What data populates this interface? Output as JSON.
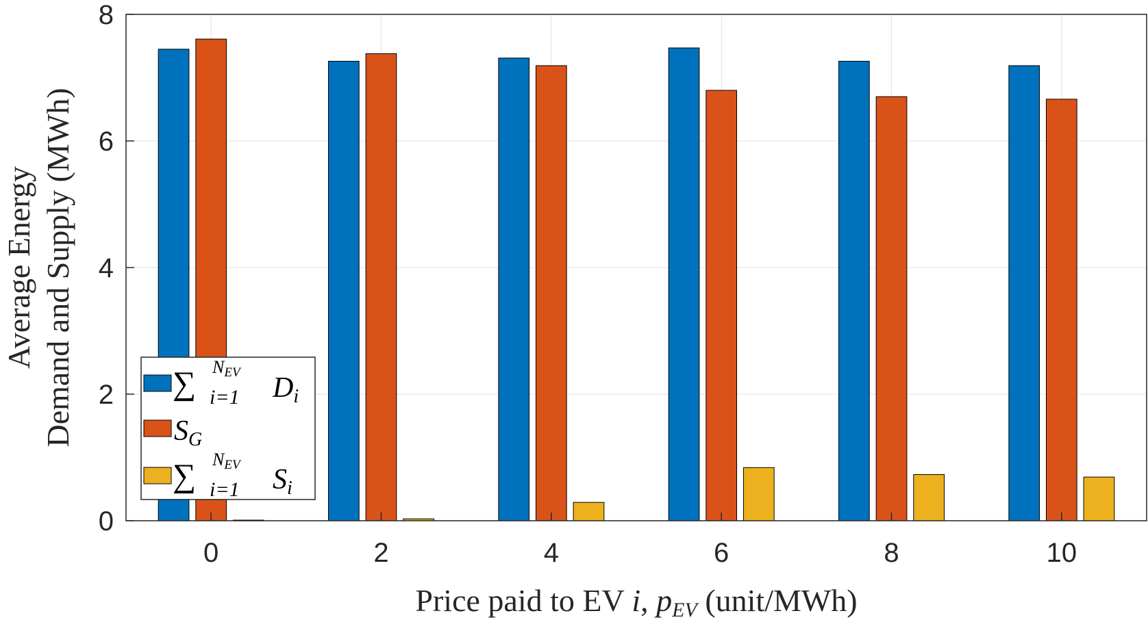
{
  "chart_data": {
    "type": "bar",
    "categories": [
      "0",
      "2",
      "4",
      "6",
      "8",
      "10"
    ],
    "series": [
      {
        "name": "sum_i=1^N_EV D_i",
        "color": "#0072BD",
        "values": [
          7.45,
          7.26,
          7.31,
          7.47,
          7.26,
          7.19
        ]
      },
      {
        "name": "S_G",
        "color": "#D95319",
        "values": [
          7.61,
          7.38,
          7.19,
          6.8,
          6.7,
          6.66
        ]
      },
      {
        "name": "sum_i=1^N_EV S_i",
        "color": "#EDB120",
        "values": [
          0.01,
          0.03,
          0.29,
          0.84,
          0.73,
          0.69
        ]
      }
    ],
    "y_ticks": [
      "0",
      "2",
      "4",
      "6",
      "8"
    ],
    "ylim": [
      0,
      8
    ],
    "xlim": [
      -1,
      11
    ],
    "grid": true,
    "legend_position": "bottom-left",
    "ylabel_lines": [
      "Average Energy",
      "Demand and Supply (MWh)"
    ],
    "xlabel": {
      "prefix": "Price paid to EV ",
      "var": "i",
      "mid": ", ",
      "p": "p",
      "sub": "EV",
      "suffix": " (unit/MWh)"
    },
    "legend": [
      {
        "sum": "∑",
        "sup": "N",
        "sup_sub": "EV",
        "lower": "i=1",
        "term": "D",
        "term_sub": "i"
      },
      {
        "term": "S",
        "term_sub": "G"
      },
      {
        "sum": "∑",
        "sup": "N",
        "sup_sub": "EV",
        "lower": "i=1",
        "term": "S",
        "term_sub": "i"
      }
    ]
  }
}
